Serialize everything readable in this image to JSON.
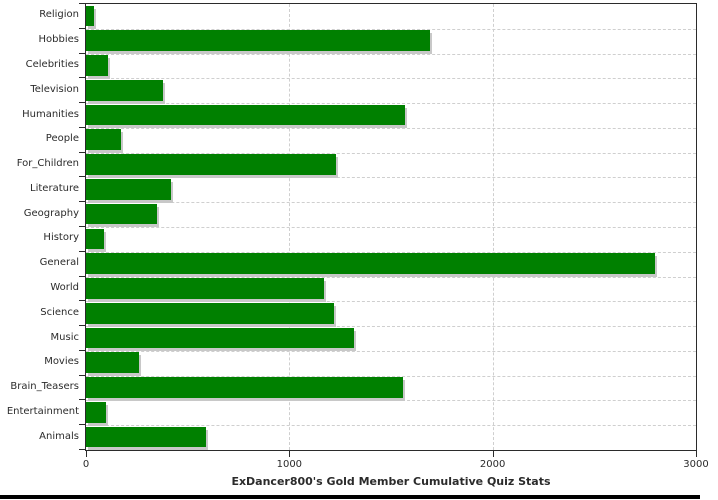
{
  "chart_data": {
    "type": "bar",
    "orientation": "horizontal",
    "title": "ExDancer800's Gold Member Cumulative Quiz Stats",
    "categories": [
      "Religion",
      "Hobbies",
      "Celebrities",
      "Television",
      "Humanities",
      "People",
      "For_Children",
      "Literature",
      "Geography",
      "History",
      "General",
      "World",
      "Science",
      "Music",
      "Movies",
      "Brain_Teasers",
      "Entertainment",
      "Animals"
    ],
    "values": [
      40,
      1690,
      110,
      380,
      1570,
      170,
      1230,
      420,
      350,
      90,
      2800,
      1170,
      1220,
      1320,
      260,
      1560,
      100,
      590
    ],
    "xlabel": "",
    "ylabel": "",
    "xlim": [
      0,
      3000
    ],
    "x_ticks": [
      0,
      1000,
      2000,
      3000
    ],
    "x_tick_labels": [
      "0",
      "1000",
      "2000",
      "3000"
    ],
    "grid": "dashed",
    "legend": "none",
    "bar_color": "#008000",
    "shadow_color": "#c8c8c8",
    "axis_color": "#2b2b2b",
    "grid_color": "#cfcfcf",
    "background": "#ffffff"
  }
}
